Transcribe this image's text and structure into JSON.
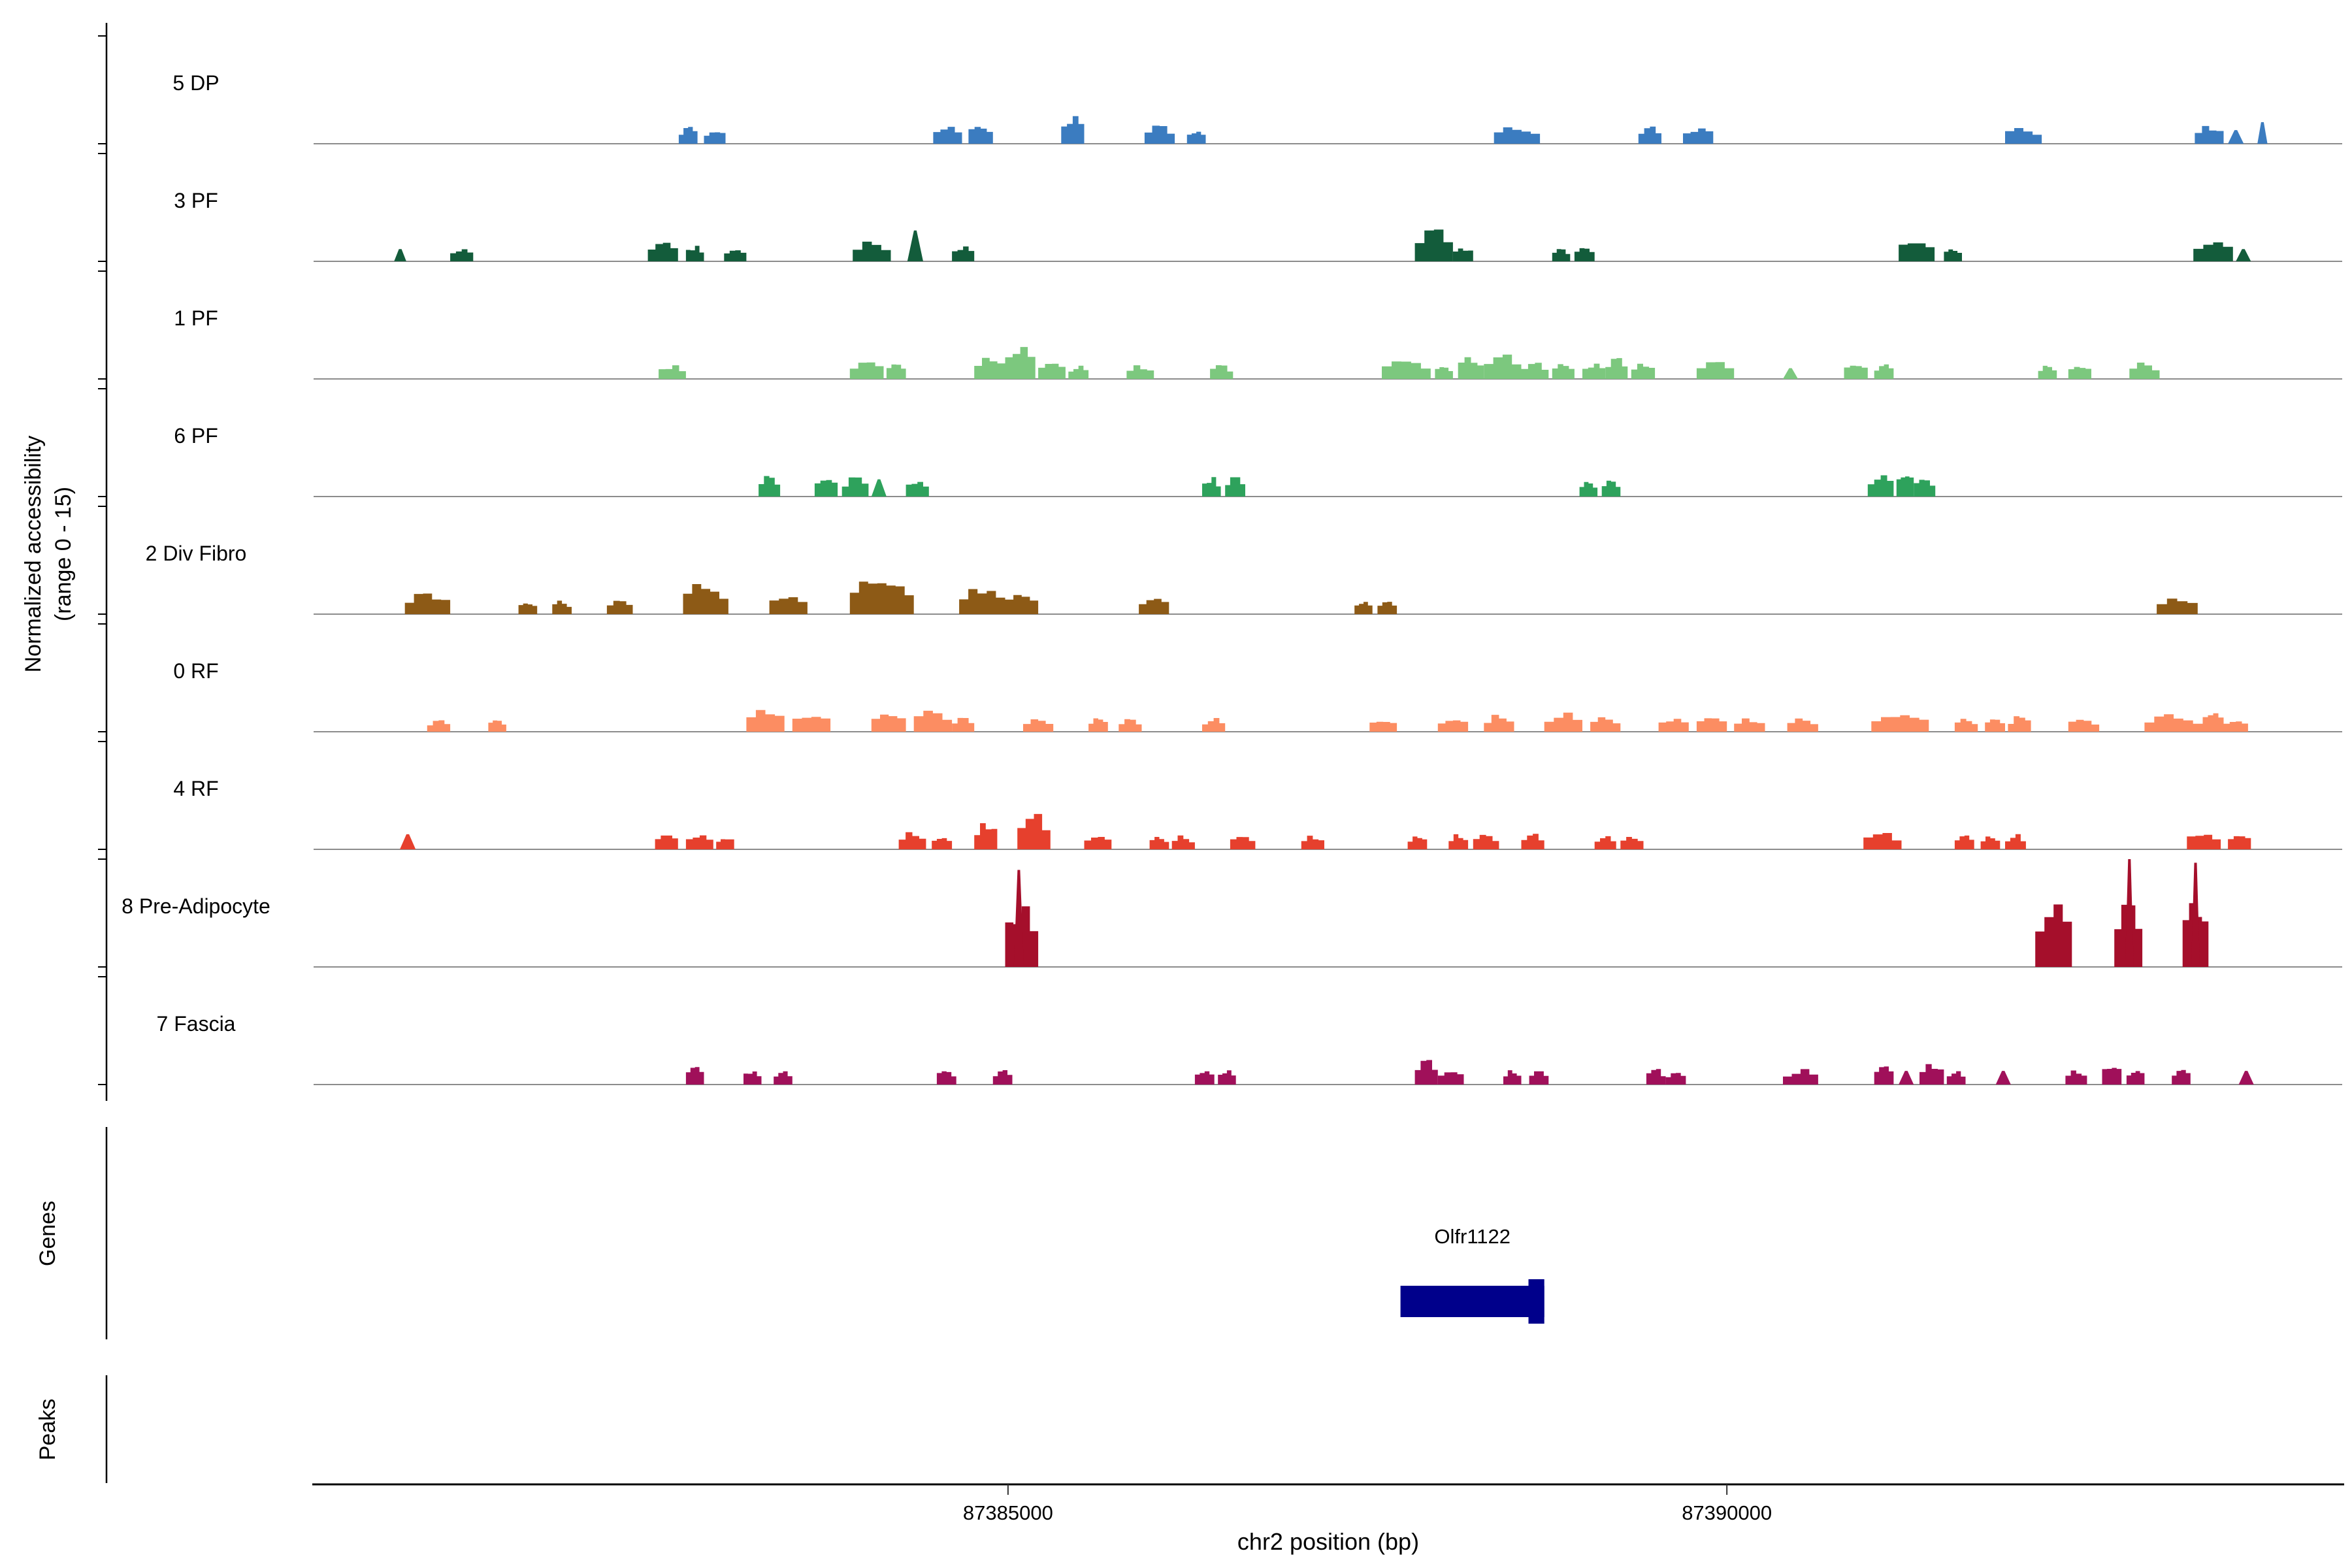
{
  "figure": {
    "y_axis_label_line1": "Normalized accessibility",
    "y_axis_label_line2": "(range 0 - 15)",
    "genes_section_label": "Genes",
    "peaks_section_label": "Peaks",
    "x_axis_title": "chr2 position (bp)"
  },
  "chart_data": {
    "type": "area",
    "subtype": "genome-accessibility-coverage-tracks",
    "chromosome": "chr2",
    "x_domain": [
      87380170,
      87394280
    ],
    "x_ticks": [
      87385000,
      87390000
    ],
    "x_tick_labels": [
      "87385000",
      "87390000"
    ],
    "track_y_range": [
      0,
      15
    ],
    "tracks": [
      {
        "label": "5 DP",
        "color": "#3B7CC0",
        "peaks": [
          [
            87382710,
            87382840,
            2.1
          ],
          [
            87382885,
            87383035,
            1.9
          ],
          [
            87384480,
            87384680,
            2.4
          ],
          [
            87384725,
            87384895,
            2.4
          ],
          [
            87385370,
            87385530,
            3.4
          ],
          [
            87385950,
            87386160,
            2.2
          ],
          [
            87386245,
            87386375,
            1.7
          ],
          [
            87388380,
            87388700,
            2.1
          ],
          [
            87389385,
            87389545,
            2.1
          ],
          [
            87389695,
            87389905,
            2.1
          ],
          [
            87391935,
            87392190,
            2.1
          ],
          [
            87393255,
            87393455,
            2.3
          ],
          [
            87393485,
            87393595,
            1.9
          ],
          [
            87393690,
            87393760,
            3.0
          ]
        ]
      },
      {
        "label": "3 PF",
        "color": "#135C3B",
        "peaks": [
          [
            87380730,
            87380815,
            1.7
          ],
          [
            87381120,
            87381280,
            1.7
          ],
          [
            87382495,
            87382705,
            2.4
          ],
          [
            87382760,
            87382885,
            1.9
          ],
          [
            87383025,
            87383180,
            1.9
          ],
          [
            87383920,
            87384185,
            2.4
          ],
          [
            87384300,
            87384410,
            4.3
          ],
          [
            87384610,
            87384765,
            1.9
          ],
          [
            87387830,
            87388095,
            3.9
          ],
          [
            87388095,
            87388235,
            1.9
          ],
          [
            87388785,
            87388910,
            1.7
          ],
          [
            87388940,
            87389080,
            1.7
          ],
          [
            87391195,
            87391445,
            2.8
          ],
          [
            87391510,
            87391635,
            1.7
          ],
          [
            87393245,
            87393520,
            2.4
          ],
          [
            87393540,
            87393645,
            1.7
          ]
        ]
      },
      {
        "label": "1 PF",
        "color": "#7CC87E",
        "peaks": [
          [
            87382570,
            87382760,
            1.7
          ],
          [
            87383900,
            87384135,
            2.1
          ],
          [
            87384155,
            87384290,
            1.9
          ],
          [
            87384765,
            87384980,
            2.6
          ],
          [
            87384980,
            87385190,
            3.9
          ],
          [
            87385210,
            87385400,
            2.1
          ],
          [
            87385420,
            87385560,
            1.7
          ],
          [
            87385825,
            87386015,
            1.7
          ],
          [
            87386405,
            87386565,
            1.7
          ],
          [
            87387600,
            87387940,
            2.3
          ],
          [
            87387970,
            87388095,
            1.9
          ],
          [
            87388130,
            87388310,
            2.8
          ],
          [
            87388310,
            87388570,
            3.0
          ],
          [
            87388570,
            87388760,
            2.1
          ],
          [
            87388785,
            87388940,
            1.9
          ],
          [
            87388995,
            87389155,
            1.9
          ],
          [
            87389155,
            87389310,
            2.6
          ],
          [
            87389335,
            87389500,
            1.9
          ],
          [
            87389790,
            87390050,
            2.3
          ],
          [
            87390390,
            87390495,
            1.5
          ],
          [
            87390815,
            87390980,
            1.9
          ],
          [
            87391025,
            87391160,
            1.9
          ],
          [
            87392165,
            87392295,
            1.7
          ],
          [
            87392375,
            87392535,
            1.7
          ],
          [
            87392800,
            87393010,
            2.1
          ]
        ]
      },
      {
        "label": "6 PF",
        "color": "#2EA25C",
        "peaks": [
          [
            87383265,
            87383415,
            2.6
          ],
          [
            87383655,
            87383815,
            2.4
          ],
          [
            87383845,
            87384030,
            2.4
          ],
          [
            87384050,
            87384155,
            2.4
          ],
          [
            87384290,
            87384450,
            2.1
          ],
          [
            87386350,
            87386480,
            2.4
          ],
          [
            87386510,
            87386650,
            2.4
          ],
          [
            87388975,
            87389100,
            2.1
          ],
          [
            87389130,
            87389260,
            2.1
          ],
          [
            87390980,
            87391160,
            2.6
          ],
          [
            87391180,
            87391300,
            3.2
          ],
          [
            87391300,
            87391450,
            2.4
          ]
        ]
      },
      {
        "label": "2 Div Fibro",
        "color": "#8D5A16",
        "peaks": [
          [
            87380805,
            87381120,
            2.6
          ],
          [
            87381595,
            87381725,
            1.7
          ],
          [
            87381830,
            87381965,
            1.7
          ],
          [
            87382210,
            87382390,
            1.9
          ],
          [
            87382740,
            87383055,
            3.9
          ],
          [
            87383340,
            87383605,
            2.4
          ],
          [
            87383900,
            87384345,
            4.8
          ],
          [
            87384660,
            87384980,
            3.4
          ],
          [
            87384980,
            87385210,
            2.6
          ],
          [
            87385910,
            87386120,
            2.1
          ],
          [
            87387410,
            87387535,
            1.7
          ],
          [
            87387570,
            87387705,
            1.7
          ],
          [
            87392990,
            87393275,
            1.9
          ]
        ]
      },
      {
        "label": "0 RF",
        "color": "#FC8D62",
        "peaks": [
          [
            87380960,
            87381120,
            1.5
          ],
          [
            87381385,
            87381510,
            1.7
          ],
          [
            87383180,
            87383445,
            3.0
          ],
          [
            87383500,
            87383765,
            2.4
          ],
          [
            87384050,
            87384290,
            2.4
          ],
          [
            87384345,
            87384610,
            2.8
          ],
          [
            87384610,
            87384765,
            1.9
          ],
          [
            87385105,
            87385315,
            1.7
          ],
          [
            87385560,
            87385695,
            1.7
          ],
          [
            87385770,
            87385930,
            1.7
          ],
          [
            87386350,
            87386510,
            1.7
          ],
          [
            87387515,
            87387705,
            1.7
          ],
          [
            87387990,
            87388200,
            1.9
          ],
          [
            87388310,
            87388520,
            2.1
          ],
          [
            87388730,
            87388995,
            2.4
          ],
          [
            87389050,
            87389260,
            1.9
          ],
          [
            87389525,
            87389735,
            1.7
          ],
          [
            87389790,
            87390000,
            1.9
          ],
          [
            87390050,
            87390265,
            1.7
          ],
          [
            87390420,
            87390635,
            1.7
          ],
          [
            87391005,
            87391405,
            2.4
          ],
          [
            87391585,
            87391745,
            1.7
          ],
          [
            87391795,
            87391935,
            1.7
          ],
          [
            87391955,
            87392115,
            1.9
          ],
          [
            87392375,
            87392590,
            1.7
          ],
          [
            87392905,
            87393310,
            2.1
          ],
          [
            87393310,
            87393455,
            2.8
          ],
          [
            87393455,
            87393625,
            1.7
          ]
        ]
      },
      {
        "label": "4 RF",
        "color": "#E6402D",
        "peaks": [
          [
            87380770,
            87380880,
            2.1
          ],
          [
            87382545,
            87382705,
            1.9
          ],
          [
            87382760,
            87382950,
            1.7
          ],
          [
            87382970,
            87383095,
            1.7
          ],
          [
            87384240,
            87384430,
            2.1
          ],
          [
            87384470,
            87384610,
            1.7
          ],
          [
            87384765,
            87384925,
            3.4
          ],
          [
            87385065,
            87385295,
            4.3
          ],
          [
            87385530,
            87385720,
            1.9
          ],
          [
            87385985,
            87386120,
            1.7
          ],
          [
            87386140,
            87386300,
            1.7
          ],
          [
            87386545,
            87386720,
            1.9
          ],
          [
            87387040,
            87387200,
            1.7
          ],
          [
            87387780,
            87387915,
            1.7
          ],
          [
            87388065,
            87388200,
            1.9
          ],
          [
            87388235,
            87388415,
            1.9
          ],
          [
            87388570,
            87388730,
            2.1
          ],
          [
            87389080,
            87389230,
            1.7
          ],
          [
            87389260,
            87389420,
            1.7
          ],
          [
            87390950,
            87391215,
            2.1
          ],
          [
            87391585,
            87391720,
            1.7
          ],
          [
            87391765,
            87391900,
            1.7
          ],
          [
            87391935,
            87392080,
            1.9
          ],
          [
            87393200,
            87393435,
            2.3
          ],
          [
            87393485,
            87393645,
            1.9
          ]
        ]
      },
      {
        "label": "8 Pre-Adipocyte",
        "color": "#A50F2B",
        "peaks": [
          [
            87384980,
            87385210,
            7.5
          ],
          [
            87385040,
            87385110,
            13.5
          ],
          [
            87392145,
            87392400,
            8.4
          ],
          [
            87392695,
            87392890,
            8.4
          ],
          [
            87392770,
            87392830,
            15
          ],
          [
            87393170,
            87393350,
            8.4
          ],
          [
            87393230,
            87393290,
            14.5
          ]
        ]
      },
      {
        "label": "7 Fascia",
        "color": "#A0105A",
        "peaks": [
          [
            87382760,
            87382885,
            2.6
          ],
          [
            87383160,
            87383285,
            1.9
          ],
          [
            87383370,
            87383500,
            1.9
          ],
          [
            87384505,
            87384640,
            1.9
          ],
          [
            87384895,
            87385030,
            1.9
          ],
          [
            87386300,
            87386435,
            1.9
          ],
          [
            87386460,
            87386585,
            1.9
          ],
          [
            87387830,
            87387990,
            3.2
          ],
          [
            87387990,
            87388170,
            1.9
          ],
          [
            87388445,
            87388570,
            1.9
          ],
          [
            87388625,
            87388760,
            1.9
          ],
          [
            87389440,
            87389575,
            1.9
          ],
          [
            87389575,
            87389715,
            1.7
          ],
          [
            87390390,
            87390635,
            1.9
          ],
          [
            87391025,
            87391160,
            2.6
          ],
          [
            87391195,
            87391300,
            1.9
          ],
          [
            87391340,
            87391510,
            2.8
          ],
          [
            87391530,
            87391660,
            1.9
          ],
          [
            87391870,
            87391975,
            1.9
          ],
          [
            87392355,
            87392505,
            1.9
          ],
          [
            87392610,
            87392745,
            2.6
          ],
          [
            87392780,
            87392905,
            1.9
          ],
          [
            87393095,
            87393225,
            1.9
          ],
          [
            87393560,
            87393665,
            1.9
          ]
        ]
      }
    ],
    "gene": {
      "name": "Olfr1122",
      "start": 87387730,
      "end": 87388730,
      "thick_start": 87388620,
      "color": "#00008B"
    },
    "peaks_track": []
  }
}
